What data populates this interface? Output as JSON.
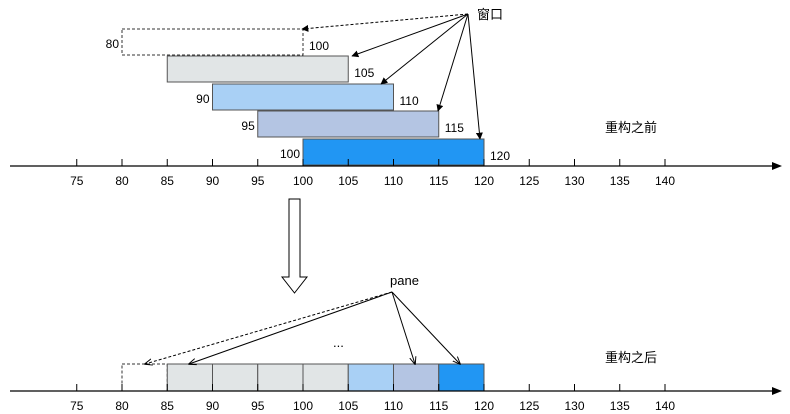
{
  "top": {
    "windows_label": "窗口",
    "state_label": "重构之前",
    "windows": [
      {
        "start": 80,
        "end": 100,
        "start_label": "80",
        "end_label": "100",
        "color": "#ffffff",
        "dashed": true
      },
      {
        "start": 85,
        "end": 105,
        "start_label": "",
        "end_label": "105",
        "color": "#e1e5e6",
        "dashed": false
      },
      {
        "start": 90,
        "end": 110,
        "start_label": "90",
        "end_label": "110",
        "color": "#a9d0f5",
        "dashed": false
      },
      {
        "start": 95,
        "end": 115,
        "start_label": "95",
        "end_label": "115",
        "color": "#b4c5e3",
        "dashed": false
      },
      {
        "start": 100,
        "end": 120,
        "start_label": "100",
        "end_label": "120",
        "color": "#2196f3",
        "dashed": false
      }
    ]
  },
  "bottom": {
    "pane_label": "pane",
    "ellipsis": "...",
    "state_label": "重构之后",
    "panes": [
      {
        "start": 80,
        "end": 85,
        "color": "#ffffff",
        "dashed": true
      },
      {
        "start": 85,
        "end": 90,
        "color": "#e1e5e6",
        "dashed": false
      },
      {
        "start": 90,
        "end": 95,
        "color": "#e1e5e6",
        "dashed": false
      },
      {
        "start": 95,
        "end": 100,
        "color": "#e1e5e6",
        "dashed": false
      },
      {
        "start": 100,
        "end": 105,
        "color": "#e1e5e6",
        "dashed": false
      },
      {
        "start": 105,
        "end": 110,
        "color": "#a9d0f5",
        "dashed": false
      },
      {
        "start": 110,
        "end": 115,
        "color": "#b4c5e3",
        "dashed": false
      },
      {
        "start": 115,
        "end": 120,
        "color": "#2196f3",
        "dashed": false
      }
    ]
  },
  "axis_ticks": [
    "75",
    "80",
    "85",
    "90",
    "95",
    "100",
    "105",
    "110",
    "115",
    "120",
    "125",
    "130",
    "135",
    "140"
  ],
  "axis_values": [
    75,
    80,
    85,
    90,
    95,
    100,
    105,
    110,
    115,
    120,
    125,
    130,
    135,
    140
  ],
  "stroke_color": "#000000",
  "block_border": "#555555"
}
